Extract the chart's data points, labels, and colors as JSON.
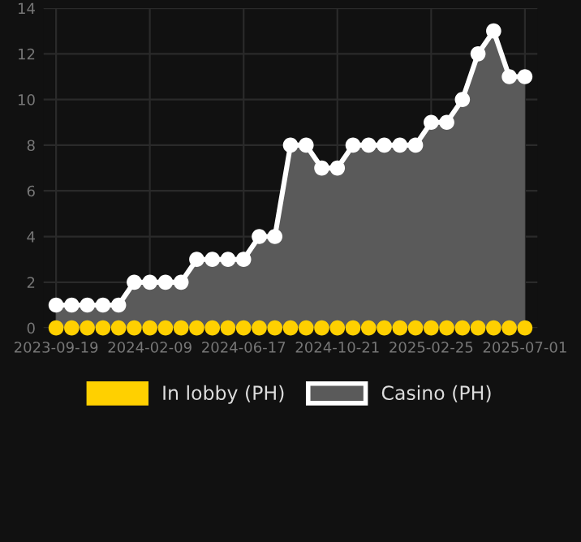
{
  "chart_data": {
    "type": "area",
    "categories": [
      "2023-09-19",
      null,
      null,
      null,
      null,
      null,
      "2024-02-09",
      null,
      null,
      null,
      null,
      null,
      "2024-06-17",
      null,
      null,
      null,
      null,
      null,
      "2024-10-21",
      null,
      null,
      null,
      null,
      null,
      "2025-02-25",
      null,
      null,
      null,
      null,
      null,
      "2025-07-01"
    ],
    "series": [
      {
        "name": "In lobby (PH)",
        "type": "scatter",
        "color": "#ffd000",
        "values": [
          0,
          0,
          0,
          0,
          0,
          0,
          0,
          0,
          0,
          0,
          0,
          0,
          0,
          0,
          0,
          0,
          0,
          0,
          0,
          0,
          0,
          0,
          0,
          0,
          0,
          0,
          0,
          0,
          0,
          0,
          0
        ]
      },
      {
        "name": "Casino (PH)",
        "color": "#ffffff",
        "values": [
          1,
          1,
          1,
          1,
          1,
          2,
          2,
          2,
          2,
          3,
          3,
          3,
          3,
          4,
          4,
          8,
          8,
          7,
          7,
          8,
          8,
          8,
          8,
          8,
          9,
          9,
          10,
          12,
          13,
          11,
          11
        ]
      }
    ],
    "ylim": [
      0,
      14
    ],
    "yticks": [
      0,
      2,
      4,
      6,
      8,
      10,
      12,
      14
    ],
    "grid": true,
    "legend": "bottom",
    "marker": "circle"
  }
}
